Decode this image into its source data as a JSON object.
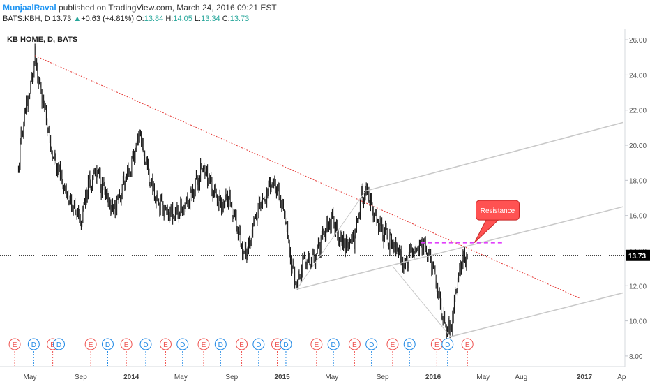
{
  "header": {
    "author": "MunjaalRaval",
    "published_text": "published on TradingView.com, March 24, 2016 09:21 EST",
    "symbol": "BATS:KBH, D",
    "last": "13.73",
    "change": "+0.63 (+4.81%)",
    "ohlc": {
      "o_label": "O:",
      "o": "13.84",
      "h_label": "H:",
      "h": "14.05",
      "l_label": "L:",
      "l": "13.34",
      "c_label": "C:",
      "c": "13.73"
    }
  },
  "colors": {
    "candle": "#000000",
    "trendline": "#e53935",
    "channel": "#c8c8c8",
    "resistance": "#e040fb",
    "callout_fill": "#ff5252",
    "earnings": "#ef5350",
    "dividend": "#1e88e5"
  },
  "chart_data": {
    "type": "candlestick",
    "title": "KB HOME, D, BATS",
    "x_ticks": [
      "May",
      "Sep",
      "2014",
      "May",
      "Sep",
      "2015",
      "May",
      "Sep",
      "2016",
      "May",
      "Aug",
      "2017",
      "Ap"
    ],
    "y_ticks": [
      "26.00",
      "24.00",
      "22.00",
      "20.00",
      "18.00",
      "16.00",
      "14.00",
      "12.00",
      "10.00",
      "8.00"
    ],
    "ylim": [
      7.4,
      26.6
    ],
    "last_price_label": "13.73",
    "last_price": 13.73,
    "price_path": [
      [
        "2013-04-03",
        18.6
      ],
      [
        "2013-04-10",
        20.6
      ],
      [
        "2013-04-22",
        22.2
      ],
      [
        "2013-05-01",
        23.0
      ],
      [
        "2013-05-08",
        24.3
      ],
      [
        "2013-05-13",
        25.0
      ],
      [
        "2013-05-21",
        23.6
      ],
      [
        "2013-06-05",
        22.4
      ],
      [
        "2013-06-20",
        19.8
      ],
      [
        "2013-07-05",
        18.7
      ],
      [
        "2013-07-25",
        17.5
      ],
      [
        "2013-08-15",
        16.3
      ],
      [
        "2013-09-01",
        15.8
      ],
      [
        "2013-09-20",
        17.9
      ],
      [
        "2013-10-10",
        18.4
      ],
      [
        "2013-10-30",
        17.2
      ],
      [
        "2013-11-20",
        16.2
      ],
      [
        "2013-12-10",
        17.6
      ],
      [
        "2013-12-31",
        18.8
      ],
      [
        "2014-01-15",
        20.1
      ],
      [
        "2014-01-22",
        20.7
      ],
      [
        "2014-02-05",
        18.9
      ],
      [
        "2014-02-25",
        17.3
      ],
      [
        "2014-03-15",
        16.7
      ],
      [
        "2014-04-05",
        16.0
      ],
      [
        "2014-04-30",
        16.3
      ],
      [
        "2014-05-20",
        16.9
      ],
      [
        "2014-06-10",
        18.0
      ],
      [
        "2014-06-24",
        18.8
      ],
      [
        "2014-07-15",
        17.6
      ],
      [
        "2014-08-05",
        16.6
      ],
      [
        "2014-08-25",
        16.9
      ],
      [
        "2014-09-15",
        15.2
      ],
      [
        "2014-10-01",
        13.8
      ],
      [
        "2014-10-15",
        14.5
      ],
      [
        "2014-11-05",
        16.5
      ],
      [
        "2014-11-25",
        17.2
      ],
      [
        "2014-12-05",
        18.0
      ],
      [
        "2014-12-26",
        17.0
      ],
      [
        "2015-01-10",
        15.8
      ],
      [
        "2015-01-20",
        13.6
      ],
      [
        "2015-01-30",
        12.6
      ],
      [
        "2015-02-05",
        11.9
      ],
      [
        "2015-02-25",
        13.5
      ],
      [
        "2015-03-20",
        13.6
      ],
      [
        "2015-04-10",
        15.0
      ],
      [
        "2015-04-30",
        15.8
      ],
      [
        "2015-05-20",
        14.6
      ],
      [
        "2015-06-10",
        14.3
      ],
      [
        "2015-06-25",
        14.8
      ],
      [
        "2015-07-10",
        17.0
      ],
      [
        "2015-07-22",
        17.3
      ],
      [
        "2015-08-05",
        16.4
      ],
      [
        "2015-08-25",
        15.2
      ],
      [
        "2015-09-10",
        14.9
      ],
      [
        "2015-09-25",
        14.3
      ],
      [
        "2015-10-10",
        13.8
      ],
      [
        "2015-10-25",
        13.2
      ],
      [
        "2015-11-10",
        13.8
      ],
      [
        "2015-11-25",
        14.2
      ],
      [
        "2015-12-05",
        14.4
      ],
      [
        "2015-12-20",
        13.8
      ],
      [
        "2016-01-05",
        12.7
      ],
      [
        "2016-01-20",
        10.5
      ],
      [
        "2016-02-01",
        9.8
      ],
      [
        "2016-02-12",
        9.3
      ],
      [
        "2016-02-22",
        11.2
      ],
      [
        "2016-03-05",
        12.9
      ],
      [
        "2016-03-15",
        13.6
      ],
      [
        "2016-03-24",
        13.73
      ]
    ],
    "drawings": {
      "downtrend_line": [
        [
          "2013-05-13",
          25.1
        ],
        [
          "2016-12-20",
          11.3
        ]
      ],
      "channel_upper": [
        [
          "2015-07-22",
          17.4
        ],
        [
          "2017-04-05",
          21.3
        ]
      ],
      "channel_middle": [
        [
          "2015-02-05",
          11.8
        ],
        [
          "2017-04-05",
          16.5
        ]
      ],
      "channel_lower": [
        [
          "2016-02-12",
          9.1
        ],
        [
          "2017-04-05",
          11.6
        ]
      ],
      "channel_left": [
        [
          "2015-02-05",
          11.8
        ],
        [
          "2015-07-22",
          17.4
        ]
      ],
      "channel_bottom_left": [
        [
          "2015-09-25",
          13.1
        ],
        [
          "2016-02-12",
          9.1
        ]
      ],
      "resistance_level": [
        [
          "2015-12-03",
          14.45
        ],
        [
          "2016-06-20",
          14.45
        ]
      ],
      "resistance_label": "Resistance",
      "resistance_point": [
        "2016-04-10",
        14.45
      ],
      "callout_anchor": [
        "2016-06-05",
        16.3
      ]
    },
    "events": [
      {
        "type": "E",
        "date": "2013-03-25"
      },
      {
        "type": "D",
        "date": "2013-05-10"
      },
      {
        "type": "E",
        "date": "2013-06-25"
      },
      {
        "type": "D",
        "date": "2013-07-10"
      },
      {
        "type": "E",
        "date": "2013-09-25"
      },
      {
        "type": "D",
        "date": "2013-11-05"
      },
      {
        "type": "E",
        "date": "2013-12-20"
      },
      {
        "type": "D",
        "date": "2014-02-05"
      },
      {
        "type": "E",
        "date": "2014-03-25"
      },
      {
        "type": "D",
        "date": "2014-05-05"
      },
      {
        "type": "E",
        "date": "2014-06-25"
      },
      {
        "type": "D",
        "date": "2014-08-05"
      },
      {
        "type": "E",
        "date": "2014-09-25"
      },
      {
        "type": "D",
        "date": "2014-11-05"
      },
      {
        "type": "E",
        "date": "2014-12-20"
      },
      {
        "type": "D",
        "date": "2015-01-10"
      },
      {
        "type": "E",
        "date": "2015-03-25"
      },
      {
        "type": "D",
        "date": "2015-05-05"
      },
      {
        "type": "E",
        "date": "2015-06-25"
      },
      {
        "type": "D",
        "date": "2015-08-05"
      },
      {
        "type": "E",
        "date": "2015-09-25"
      },
      {
        "type": "D",
        "date": "2015-11-05"
      },
      {
        "type": "E",
        "date": "2016-01-10"
      },
      {
        "type": "D",
        "date": "2016-02-05"
      },
      {
        "type": "E",
        "date": "2016-03-24"
      }
    ]
  }
}
